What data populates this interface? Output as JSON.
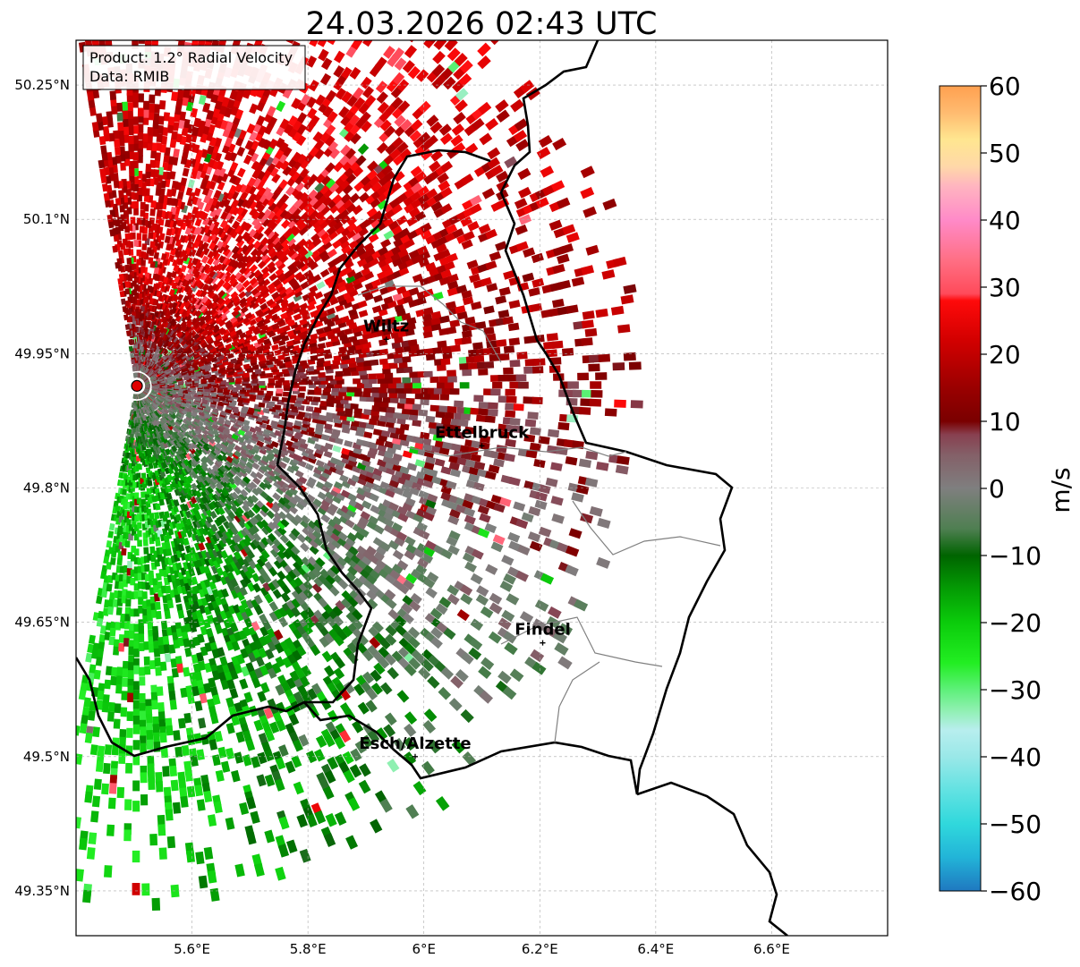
{
  "title": "24.03.2026 02:43 UTC",
  "info_box": {
    "product_line": "Product: 1.2° Radial Velocity",
    "data_line": "Data: RMIB"
  },
  "map": {
    "lon_range": [
      5.4,
      6.8
    ],
    "lat_range": [
      49.3,
      50.3
    ],
    "radar_site": {
      "lon": 5.505,
      "lat": 49.914
    },
    "x_ticks": [
      {
        "value": 5.6,
        "label": "5.6°E"
      },
      {
        "value": 5.8,
        "label": "5.8°E"
      },
      {
        "value": 6.0,
        "label": "6°E"
      },
      {
        "value": 6.2,
        "label": "6.2°E"
      },
      {
        "value": 6.4,
        "label": "6.4°E"
      },
      {
        "value": 6.6,
        "label": "6.6°E"
      }
    ],
    "y_ticks": [
      {
        "value": 50.25,
        "label": "50.25°N"
      },
      {
        "value": 50.1,
        "label": "50.1°N"
      },
      {
        "value": 49.95,
        "label": "49.95°N"
      },
      {
        "value": 49.8,
        "label": "49.8°N"
      },
      {
        "value": 49.65,
        "label": "49.65°N"
      },
      {
        "value": 49.5,
        "label": "49.5°N"
      },
      {
        "value": 49.35,
        "label": "49.35°N"
      }
    ],
    "grid": true,
    "cities": [
      {
        "name": "Wiltz",
        "lon": 5.935,
        "lat": 49.966
      },
      {
        "name": "Ettelbruck",
        "lon": 6.1,
        "lat": 49.847
      },
      {
        "name": "Findel",
        "lon": 6.205,
        "lat": 49.627
      },
      {
        "name": "Esch/Alzette",
        "lon": 5.985,
        "lat": 49.5
      }
    ]
  },
  "colorbar": {
    "label": "m/s",
    "min": -60,
    "max": 60,
    "ticks": [
      {
        "value": 60,
        "label": "60"
      },
      {
        "value": 50,
        "label": "50"
      },
      {
        "value": 40,
        "label": "40"
      },
      {
        "value": 30,
        "label": "30"
      },
      {
        "value": 20,
        "label": "20"
      },
      {
        "value": 10,
        "label": "10"
      },
      {
        "value": 0,
        "label": "0"
      },
      {
        "value": -10,
        "label": "−10"
      },
      {
        "value": -20,
        "label": "−20"
      },
      {
        "value": -30,
        "label": "−30"
      },
      {
        "value": -40,
        "label": "−40"
      },
      {
        "value": -50,
        "label": "−50"
      },
      {
        "value": -60,
        "label": "−60"
      }
    ],
    "stops": [
      {
        "value": -60,
        "color": "#1f78c0"
      },
      {
        "value": -55,
        "color": "#22b4d8"
      },
      {
        "value": -50,
        "color": "#30d8dc"
      },
      {
        "value": -45,
        "color": "#62e2e2"
      },
      {
        "value": -40,
        "color": "#9ae8e8"
      },
      {
        "value": -36,
        "color": "#b8eeee"
      },
      {
        "value": -33,
        "color": "#8ef0b0"
      },
      {
        "value": -30,
        "color": "#5ef07a"
      },
      {
        "value": -26,
        "color": "#22ee22"
      },
      {
        "value": -20,
        "color": "#0bcc0b"
      },
      {
        "value": -15,
        "color": "#049c04"
      },
      {
        "value": -10,
        "color": "#006400"
      },
      {
        "value": -6,
        "color": "#4f7f52"
      },
      {
        "value": 0,
        "color": "#7f7f7f"
      },
      {
        "value": 5,
        "color": "#846068"
      },
      {
        "value": 8,
        "color": "#884050"
      },
      {
        "value": 10,
        "color": "#7a0000"
      },
      {
        "value": 15,
        "color": "#9a0000"
      },
      {
        "value": 22,
        "color": "#d20000"
      },
      {
        "value": 28,
        "color": "#ff0a0a"
      },
      {
        "value": 29,
        "color": "#ff4a5a"
      },
      {
        "value": 34,
        "color": "#ff6f84"
      },
      {
        "value": 40,
        "color": "#ff8ac8"
      },
      {
        "value": 45,
        "color": "#ffb4c0"
      },
      {
        "value": 48,
        "color": "#ffd8a8"
      },
      {
        "value": 52,
        "color": "#ffe690"
      },
      {
        "value": 56,
        "color": "#ffbb70"
      },
      {
        "value": 60,
        "color": "#ffa050"
      }
    ]
  }
}
